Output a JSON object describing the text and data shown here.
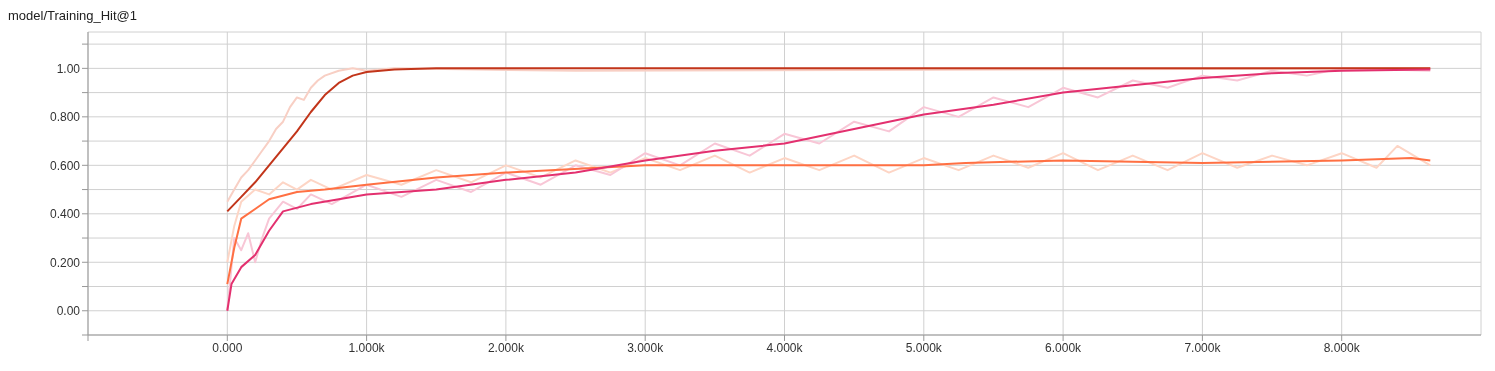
{
  "chart_data": {
    "type": "line",
    "title": "model/Training_Hit@1",
    "xlim": [
      -1000,
      9000
    ],
    "ylim": [
      -0.1,
      1.15
    ],
    "xticks": [
      {
        "value": -1000,
        "label": null
      },
      {
        "value": 0,
        "label": "0.000"
      },
      {
        "value": 1000,
        "label": "1.000k"
      },
      {
        "value": 2000,
        "label": "2.000k"
      },
      {
        "value": 3000,
        "label": "3.000k"
      },
      {
        "value": 4000,
        "label": "4.000k"
      },
      {
        "value": 5000,
        "label": "5.000k"
      },
      {
        "value": 6000,
        "label": "6.000k"
      },
      {
        "value": 7000,
        "label": "7.000k"
      },
      {
        "value": 8000,
        "label": "8.000k"
      }
    ],
    "yticks": [
      {
        "value": -0.1,
        "label": null
      },
      {
        "value": 0,
        "label": "0.00"
      },
      {
        "value": 0.1,
        "label": null
      },
      {
        "value": 0.2,
        "label": "0.200"
      },
      {
        "value": 0.3,
        "label": null
      },
      {
        "value": 0.4,
        "label": "0.400"
      },
      {
        "value": 0.5,
        "label": null
      },
      {
        "value": 0.6,
        "label": "0.600"
      },
      {
        "value": 0.7,
        "label": null
      },
      {
        "value": 0.8,
        "label": "0.800"
      },
      {
        "value": 0.9,
        "label": null
      },
      {
        "value": 1.0,
        "label": "1.00"
      },
      {
        "value": 1.1,
        "label": null
      }
    ],
    "grid": true,
    "legend": false,
    "series": [
      {
        "color": "#f8cfc4",
        "x": [
          0,
          50,
          100,
          150,
          200,
          250,
          300,
          350,
          400,
          450,
          500,
          550,
          600,
          650,
          700,
          800,
          900,
          1000,
          1200,
          2500,
          8636
        ],
        "values": [
          0.45,
          0.5,
          0.55,
          0.58,
          0.62,
          0.66,
          0.7,
          0.75,
          0.78,
          0.84,
          0.88,
          0.87,
          0.92,
          0.95,
          0.97,
          0.99,
          1.0,
          0.99,
          1.0,
          0.99,
          1.0
        ]
      },
      {
        "color": "#fdd5c5",
        "x": [
          0,
          50,
          100,
          200,
          300,
          400,
          500,
          600,
          750,
          1000,
          1250,
          1500,
          1750,
          2000,
          2250,
          2500,
          2750,
          3000,
          3250,
          3500,
          3750,
          4000,
          4250,
          4500,
          4750,
          5000,
          5250,
          5500,
          5750,
          6000,
          6250,
          6500,
          6750,
          7000,
          7250,
          7500,
          7750,
          8000,
          8250,
          8400,
          8636
        ],
        "values": [
          0.2,
          0.35,
          0.45,
          0.5,
          0.48,
          0.53,
          0.5,
          0.54,
          0.5,
          0.56,
          0.52,
          0.58,
          0.53,
          0.6,
          0.55,
          0.62,
          0.57,
          0.63,
          0.58,
          0.64,
          0.57,
          0.63,
          0.58,
          0.64,
          0.57,
          0.63,
          0.58,
          0.64,
          0.59,
          0.65,
          0.58,
          0.64,
          0.58,
          0.65,
          0.59,
          0.64,
          0.6,
          0.65,
          0.59,
          0.68,
          0.6
        ]
      },
      {
        "color": "#f8c6d6",
        "x": [
          0,
          50,
          100,
          150,
          200,
          250,
          300,
          400,
          500,
          600,
          750,
          1000,
          1250,
          1500,
          1750,
          2000,
          2250,
          2500,
          2750,
          3000,
          3250,
          3500,
          3750,
          4000,
          4250,
          4500,
          4750,
          5000,
          5250,
          5500,
          5750,
          6000,
          6250,
          6500,
          6750,
          7000,
          7250,
          7500,
          7750,
          8000,
          8636
        ],
        "values": [
          0.0,
          0.3,
          0.25,
          0.32,
          0.2,
          0.3,
          0.38,
          0.45,
          0.42,
          0.48,
          0.44,
          0.52,
          0.47,
          0.54,
          0.49,
          0.57,
          0.52,
          0.6,
          0.56,
          0.65,
          0.6,
          0.69,
          0.64,
          0.73,
          0.69,
          0.78,
          0.74,
          0.84,
          0.8,
          0.88,
          0.84,
          0.92,
          0.88,
          0.95,
          0.92,
          0.97,
          0.95,
          0.99,
          0.97,
          1.0,
          0.99
        ]
      },
      {
        "color": "#c2351a",
        "x": [
          0,
          100,
          200,
          300,
          400,
          500,
          600,
          700,
          800,
          900,
          1000,
          1200,
          1500,
          8636
        ],
        "values": [
          0.41,
          0.47,
          0.53,
          0.6,
          0.67,
          0.74,
          0.82,
          0.89,
          0.94,
          0.97,
          0.985,
          0.995,
          1.0,
          1.0
        ]
      },
      {
        "color": "#ff7043",
        "x": [
          0,
          50,
          100,
          200,
          300,
          500,
          700,
          1000,
          1500,
          2000,
          3000,
          4000,
          5000,
          5300,
          6000,
          7000,
          8000,
          8500,
          8636
        ],
        "values": [
          0.11,
          0.26,
          0.38,
          0.42,
          0.46,
          0.49,
          0.5,
          0.52,
          0.55,
          0.57,
          0.6,
          0.6,
          0.6,
          0.61,
          0.62,
          0.61,
          0.62,
          0.63,
          0.62
        ]
      },
      {
        "color": "#e3306f",
        "x": [
          0,
          30,
          100,
          200,
          300,
          400,
          600,
          800,
          1000,
          1500,
          2000,
          2500,
          3000,
          3500,
          4000,
          4500,
          5000,
          5500,
          6000,
          6500,
          7000,
          7500,
          8000,
          8636
        ],
        "values": [
          0.0,
          0.11,
          0.18,
          0.23,
          0.33,
          0.41,
          0.44,
          0.46,
          0.48,
          0.5,
          0.54,
          0.57,
          0.62,
          0.66,
          0.69,
          0.75,
          0.81,
          0.85,
          0.9,
          0.93,
          0.96,
          0.98,
          0.99,
          0.995
        ]
      }
    ]
  }
}
